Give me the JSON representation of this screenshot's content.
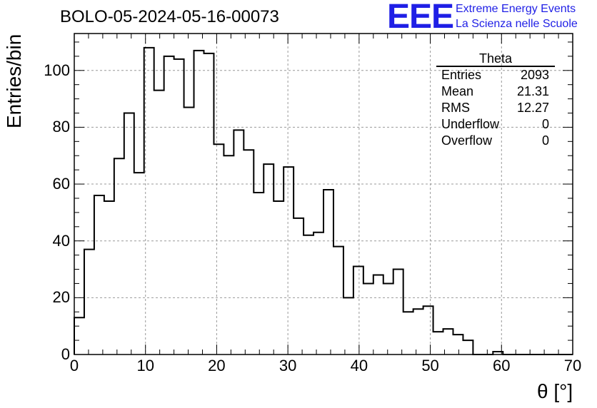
{
  "header": {
    "title": "BOLO-05-2024-05-16-00073",
    "logo_mark": "EEE",
    "logo_line1": "Extreme Energy Events",
    "logo_line2": "La Scienza nelle Scuole",
    "logo_color": "#1f1fe6"
  },
  "stats": {
    "name": "Theta",
    "rows": [
      {
        "label": "Entries",
        "value": "2093"
      },
      {
        "label": "Mean",
        "value": "21.31"
      },
      {
        "label": "RMS",
        "value": "12.27"
      },
      {
        "label": "Underflow",
        "value": "0"
      },
      {
        "label": "Overflow",
        "value": "0"
      }
    ]
  },
  "chart_data": {
    "type": "histogram",
    "title": "BOLO-05-2024-05-16-00073",
    "xlabel": "θ [°]",
    "ylabel": "Entries/bin",
    "xlim": [
      0,
      70
    ],
    "ylim": [
      0,
      113
    ],
    "grid": true,
    "bin_width": 1.4,
    "bin_start": 0,
    "values": [
      13,
      37,
      56,
      54,
      69,
      85,
      64,
      108,
      93,
      105,
      104,
      87,
      107,
      106,
      74,
      70,
      79,
      72,
      57,
      67,
      54,
      66,
      48,
      42,
      43,
      58,
      38,
      20,
      31,
      25,
      28,
      25,
      30,
      15,
      16,
      17,
      8,
      9,
      7,
      5,
      0,
      0,
      1,
      0,
      0,
      0,
      0,
      0,
      0,
      0
    ],
    "x_ticks": [
      "0",
      "10",
      "20",
      "30",
      "40",
      "50",
      "60",
      "70"
    ],
    "y_ticks": [
      "0",
      "20",
      "40",
      "60",
      "80",
      "100"
    ]
  }
}
